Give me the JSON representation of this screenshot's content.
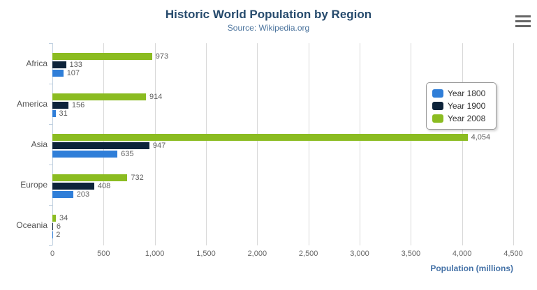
{
  "chart_data": {
    "type": "bar",
    "orientation": "horizontal",
    "title": "Historic World Population by Region",
    "subtitle": "Source: Wikipedia.org",
    "categories": [
      "Africa",
      "America",
      "Asia",
      "Europe",
      "Oceania"
    ],
    "series": [
      {
        "name": "Year 1800",
        "color": "#2f7ed8",
        "values": [
          107,
          31,
          635,
          203,
          2
        ]
      },
      {
        "name": "Year 1900",
        "color": "#0d233a",
        "values": [
          133,
          156,
          947,
          408,
          6
        ]
      },
      {
        "name": "Year 2008",
        "color": "#8bbc21",
        "values": [
          973,
          914,
          4054,
          732,
          34
        ]
      }
    ],
    "series_display_order_top_to_bottom": [
      "Year 2008",
      "Year 1900",
      "Year 1800"
    ],
    "xlabel": "Population (millions)",
    "ylabel": "",
    "xlim": [
      0,
      4500
    ],
    "xticks": [
      0,
      500,
      1000,
      1500,
      2000,
      2500,
      3000,
      3500,
      4000,
      4500
    ],
    "grid": "vertical-only",
    "legend_position": "right-inside",
    "data_labels": "shown-at-bar-end"
  },
  "colors": {
    "title": "#274b6d",
    "subtitle": "#4d759e",
    "category_label": "#555555",
    "value_label": "#606060",
    "tick_label": "#666666",
    "xaxis_title": "#4572a7",
    "grid": "#d8d8d8",
    "axis_line": "#c0d0e0",
    "legend_border": "#999999",
    "legend_text": "#333333",
    "menu_icon": "#666666"
  },
  "context_menu": {
    "tooltip": "Chart context menu"
  }
}
